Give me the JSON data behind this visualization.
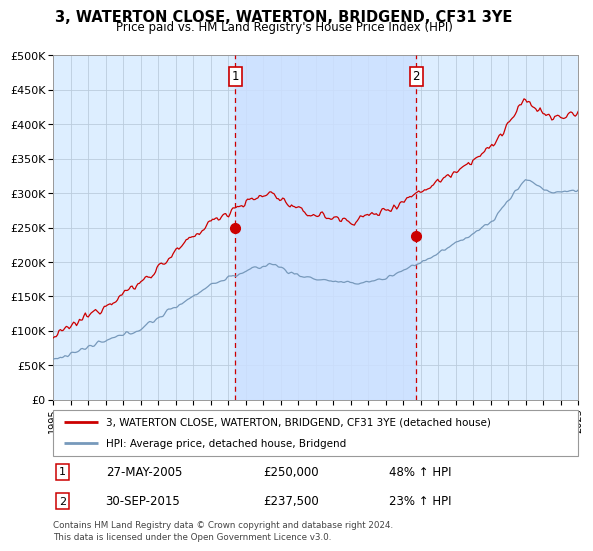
{
  "title": "3, WATERTON CLOSE, WATERTON, BRIDGEND, CF31 3YE",
  "subtitle": "Price paid vs. HM Land Registry's House Price Index (HPI)",
  "ylabel_ticks": [
    "£0",
    "£50K",
    "£100K",
    "£150K",
    "£200K",
    "£250K",
    "£300K",
    "£350K",
    "£400K",
    "£450K",
    "£500K"
  ],
  "ytick_values": [
    0,
    50000,
    100000,
    150000,
    200000,
    250000,
    300000,
    350000,
    400000,
    450000,
    500000
  ],
  "x_start_year": 1995,
  "x_end_year": 2025,
  "sale1_date": 2005.42,
  "sale1_price": 250000,
  "sale1_label": "1",
  "sale2_date": 2015.75,
  "sale2_price": 237500,
  "sale2_label": "2",
  "legend_line1": "3, WATERTON CLOSE, WATERTON, BRIDGEND, CF31 3YE (detached house)",
  "legend_line2": "HPI: Average price, detached house, Bridgend",
  "table_row1": [
    "1",
    "27-MAY-2005",
    "£250,000",
    "48% ↑ HPI"
  ],
  "table_row2": [
    "2",
    "30-SEP-2015",
    "£237,500",
    "23% ↑ HPI"
  ],
  "footer": "Contains HM Land Registry data © Crown copyright and database right 2024.\nThis data is licensed under the Open Government Licence v3.0.",
  "color_red": "#cc0000",
  "color_blue": "#7799bb",
  "color_dashed": "#cc0000",
  "bg_color": "#ddeeff",
  "shade_color": "#cce0ff",
  "plot_bg": "#ffffff",
  "grid_color": "#bbccdd"
}
